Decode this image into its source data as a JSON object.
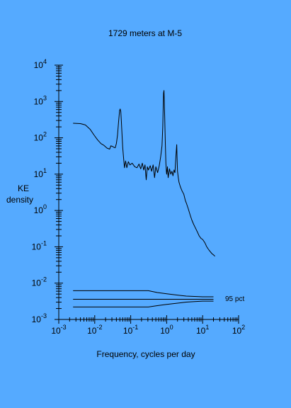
{
  "chart_data": {
    "type": "line",
    "title": "1729 meters at M-5",
    "xlabel": "Frequency, cycles per day",
    "ylabel_lines": [
      "KE",
      "density"
    ],
    "x_scale": "log",
    "y_scale": "log",
    "xlim": [
      0.001,
      100
    ],
    "ylim": [
      0.001,
      10000
    ],
    "x_ticks": [
      {
        "base": "10",
        "exp": "-3",
        "value": 0.001
      },
      {
        "base": "10",
        "exp": "-2",
        "value": 0.01
      },
      {
        "base": "10",
        "exp": "-1",
        "value": 0.1
      },
      {
        "base": "10",
        "exp": "0",
        "value": 1
      },
      {
        "base": "10",
        "exp": "1",
        "value": 10
      },
      {
        "base": "10",
        "exp": "2",
        "value": 100
      }
    ],
    "y_ticks": [
      {
        "base": "10",
        "exp": "-3",
        "value": 0.001
      },
      {
        "base": "10",
        "exp": "-2",
        "value": 0.01
      },
      {
        "base": "10",
        "exp": "-1",
        "value": 0.1
      },
      {
        "base": "10",
        "exp": "0",
        "value": 1
      },
      {
        "base": "10",
        "exp": "1",
        "value": 10
      },
      {
        "base": "10",
        "exp": "2",
        "value": 100
      },
      {
        "base": "10",
        "exp": "3",
        "value": 1000
      },
      {
        "base": "10",
        "exp": "4",
        "value": 10000
      }
    ],
    "series": [
      {
        "role": "spectrum",
        "x": [
          0.0025,
          0.004,
          0.0055,
          0.0075,
          0.0095,
          0.012,
          0.015,
          0.018,
          0.022,
          0.026,
          0.028,
          0.031,
          0.034,
          0.037,
          0.04,
          0.043,
          0.046,
          0.049,
          0.051,
          0.053,
          0.055,
          0.057,
          0.06,
          0.063,
          0.067,
          0.072,
          0.078,
          0.086,
          0.095,
          0.11,
          0.13,
          0.15,
          0.17,
          0.19,
          0.21,
          0.23,
          0.25,
          0.27,
          0.29,
          0.31,
          0.35,
          0.38,
          0.42,
          0.46,
          0.5,
          0.56,
          0.62,
          0.68,
          0.74,
          0.78,
          0.8,
          0.82,
          0.84,
          0.86,
          0.88,
          0.9,
          0.92,
          0.95,
          0.98,
          1.0,
          1.05,
          1.1,
          1.2,
          1.3,
          1.4,
          1.5,
          1.6,
          1.7,
          1.8,
          1.9,
          1.93,
          2.0,
          2.1,
          2.2,
          2.4,
          2.7,
          3.0,
          3.3,
          3.6,
          4.0,
          4.5,
          5.0,
          5.6,
          6.3,
          7.1,
          8.0,
          9.0,
          10.0,
          11.5,
          13.0,
          14.5,
          16.0,
          18.0,
          20.0,
          22.0
        ],
        "y": [
          252,
          246,
          226,
          170,
          120,
          88,
          69,
          62,
          52,
          49,
          60,
          58,
          55,
          53,
          70,
          120,
          280,
          560,
          620,
          530,
          290,
          140,
          55,
          30,
          15,
          23,
          15,
          22,
          18,
          20,
          16,
          15,
          19,
          14,
          20,
          13,
          18,
          7,
          16,
          13,
          17,
          12,
          18,
          8,
          16,
          11,
          17,
          30,
          60,
          200,
          700,
          1700,
          2000,
          900,
          400,
          150,
          60,
          20,
          12,
          10,
          16,
          8,
          14,
          10,
          12,
          9,
          13,
          11,
          30,
          65,
          38,
          12,
          8,
          6,
          4.5,
          3.4,
          2.8,
          1.9,
          1.5,
          1.1,
          0.75,
          0.55,
          0.42,
          0.33,
          0.26,
          0.2,
          0.17,
          0.16,
          0.13,
          0.1,
          0.085,
          0.075,
          0.065,
          0.06,
          0.055
        ]
      },
      {
        "role": "confidence",
        "x": [
          0.0025,
          0.22,
          0.31,
          0.55,
          1.0,
          1.9,
          3.5,
          6.0,
          10.0,
          20.0
        ],
        "y": [
          0.0062,
          0.0062,
          0.0062,
          0.0055,
          0.0051,
          0.0047,
          0.0044,
          0.0043,
          0.0042,
          0.0042
        ]
      },
      {
        "role": "confidence",
        "x": [
          0.0025,
          0.22,
          0.31,
          1.0,
          3.5,
          20.0
        ],
        "y": [
          0.0036,
          0.0036,
          0.0036,
          0.0036,
          0.0036,
          0.0036
        ]
      },
      {
        "role": "confidence",
        "x": [
          0.0025,
          0.22,
          0.31,
          0.55,
          1.0,
          1.9,
          3.5,
          6.0,
          10.0,
          20.0
        ],
        "y": [
          0.0022,
          0.0022,
          0.0022,
          0.0024,
          0.0026,
          0.0028,
          0.003,
          0.0031,
          0.0032,
          0.0032
        ]
      }
    ],
    "annotation": "95 pct"
  }
}
